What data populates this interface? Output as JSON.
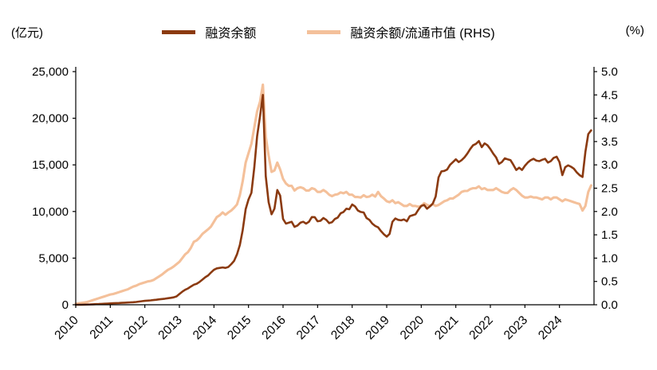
{
  "legend": [
    {
      "label": "融资余额",
      "color": "#8B3A10"
    },
    {
      "label": "融资余额/流通市值 (RHS)",
      "color": "#F4C09A"
    }
  ],
  "chart_data": {
    "type": "line",
    "title": "",
    "grid": false,
    "legend_position": "top",
    "x_start_year": 2010,
    "points_per_year": 12,
    "x_tick_labels": [
      "2010",
      "2011",
      "2012",
      "2013",
      "2014",
      "2015",
      "2016",
      "2017",
      "2018",
      "2019",
      "2020",
      "2021",
      "2022",
      "2023",
      "2024"
    ],
    "left_axis": {
      "label": "(亿元)",
      "min": 0,
      "max": 25000,
      "tick_step": 5000,
      "tick_labels": [
        "0",
        "5,000",
        "10,000",
        "15,000",
        "20,000",
        "25,000"
      ]
    },
    "right_axis": {
      "label": "(%)",
      "min": 0,
      "max": 5.0,
      "tick_step": 0.5,
      "tick_labels": [
        "0.0",
        "0.5",
        "1.0",
        "1.5",
        "2.0",
        "2.5",
        "3.0",
        "3.5",
        "4.0",
        "4.5",
        "5.0"
      ]
    },
    "series": [
      {
        "name": "融资余额",
        "axis": "left",
        "color": "#8B3A10",
        "values": [
          0,
          5,
          10,
          15,
          25,
          35,
          50,
          65,
          80,
          95,
          110,
          128,
          145,
          160,
          175,
          190,
          205,
          220,
          235,
          255,
          275,
          300,
          340,
          382,
          420,
          445,
          470,
          500,
          540,
          580,
          615,
          650,
          700,
          740,
          790,
          895,
          1150,
          1400,
          1600,
          1750,
          1950,
          2150,
          2250,
          2450,
          2700,
          2950,
          3150,
          3465,
          3750,
          3900,
          3950,
          4000,
          3950,
          4050,
          4350,
          4700,
          5400,
          6400,
          8000,
          10250,
          11300,
          12000,
          14700,
          18100,
          20200,
          22500,
          13800,
          11000,
          9700,
          10300,
          12300,
          11700,
          9200,
          8700,
          8800,
          8900,
          8350,
          8500,
          8800,
          8900,
          8700,
          8900,
          9400,
          9390,
          8950,
          9000,
          9300,
          9100,
          8750,
          8850,
          9200,
          9350,
          9800,
          9950,
          10300,
          10240,
          10750,
          10550,
          10100,
          9950,
          9900,
          9300,
          9100,
          8700,
          8450,
          8300,
          7900,
          7560,
          7300,
          7600,
          8900,
          9250,
          9100,
          9050,
          9150,
          8950,
          9500,
          9600,
          9700,
          10190,
          10600,
          10700,
          10300,
          10550,
          10850,
          11600,
          13650,
          14300,
          14350,
          14500,
          15000,
          15300,
          15600,
          15300,
          15500,
          15800,
          16200,
          16700,
          17100,
          17250,
          17550,
          16900,
          17300,
          17100,
          16700,
          16200,
          15800,
          15100,
          15300,
          15700,
          15600,
          15500,
          15000,
          14450,
          14700,
          14450,
          14900,
          15250,
          15500,
          15650,
          15450,
          15400,
          15550,
          15650,
          15250,
          15400,
          15750,
          15880,
          15300,
          13900,
          14750,
          14950,
          14800,
          14600,
          14200,
          13900,
          13700,
          16400,
          18300,
          18700
        ]
      },
      {
        "name": "融资余额/流通市值 (RHS)",
        "axis": "right",
        "color": "#F4C09A",
        "values": [
          0.02,
          0.03,
          0.04,
          0.05,
          0.06,
          0.08,
          0.1,
          0.12,
          0.14,
          0.16,
          0.18,
          0.2,
          0.22,
          0.23,
          0.25,
          0.27,
          0.29,
          0.31,
          0.33,
          0.36,
          0.39,
          0.41,
          0.44,
          0.46,
          0.48,
          0.5,
          0.51,
          0.53,
          0.57,
          0.61,
          0.65,
          0.7,
          0.75,
          0.78,
          0.82,
          0.87,
          0.92,
          1.0,
          1.08,
          1.13,
          1.22,
          1.35,
          1.38,
          1.44,
          1.52,
          1.57,
          1.62,
          1.68,
          1.78,
          1.88,
          1.92,
          1.98,
          1.93,
          1.98,
          2.02,
          2.08,
          2.15,
          2.35,
          2.65,
          3.05,
          3.25,
          3.45,
          3.8,
          4.15,
          4.35,
          4.72,
          3.6,
          3.2,
          2.85,
          2.88,
          3.05,
          2.9,
          2.7,
          2.6,
          2.55,
          2.55,
          2.45,
          2.5,
          2.52,
          2.5,
          2.45,
          2.45,
          2.5,
          2.48,
          2.42,
          2.42,
          2.46,
          2.42,
          2.36,
          2.33,
          2.36,
          2.37,
          2.41,
          2.39,
          2.42,
          2.36,
          2.36,
          2.31,
          2.31,
          2.3,
          2.35,
          2.31,
          2.32,
          2.36,
          2.32,
          2.42,
          2.33,
          2.28,
          2.22,
          2.2,
          2.24,
          2.18,
          2.2,
          2.16,
          2.12,
          2.12,
          2.16,
          2.12,
          2.12,
          2.1,
          2.12,
          2.18,
          2.14,
          2.12,
          2.16,
          2.12,
          2.14,
          2.18,
          2.22,
          2.24,
          2.28,
          2.28,
          2.32,
          2.36,
          2.42,
          2.44,
          2.44,
          2.48,
          2.5,
          2.5,
          2.54,
          2.48,
          2.5,
          2.46,
          2.46,
          2.46,
          2.5,
          2.46,
          2.42,
          2.4,
          2.4,
          2.46,
          2.5,
          2.46,
          2.4,
          2.34,
          2.3,
          2.3,
          2.32,
          2.3,
          2.3,
          2.28,
          2.26,
          2.3,
          2.3,
          2.26,
          2.3,
          2.3,
          2.26,
          2.22,
          2.26,
          2.24,
          2.22,
          2.2,
          2.18,
          2.16,
          2.02,
          2.12,
          2.42,
          2.56
        ]
      }
    ]
  }
}
